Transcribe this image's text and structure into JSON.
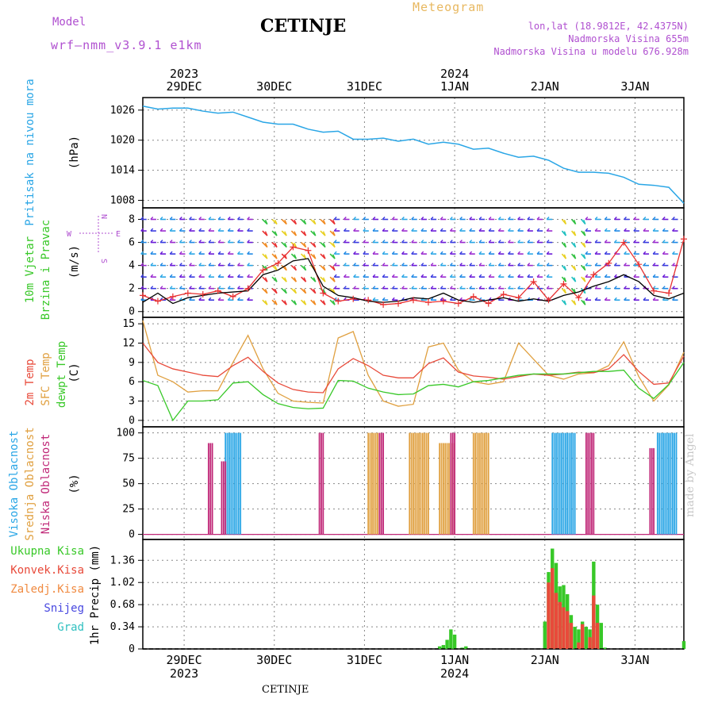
{
  "header": {
    "title": "CETINJE",
    "model_label": "Model",
    "model_value": "wrf—nmm_v3.9.1  e1km",
    "meteogram": "Meteogram",
    "lonlat": "lon,lat (18.9812E, 42.4375N)",
    "elevation": "Nadmorska Visina 655m",
    "model_elevation": "Nadmorska Visina u modelu 676.928m"
  },
  "footer": {
    "station": "CETINJE"
  },
  "watermark": "made by Angel",
  "colors": {
    "pressure": "#2aa6e6",
    "wind_speed": "#000000",
    "wind_gust": "#e83030",
    "temp_2m": "#e84a3a",
    "temp_sfc": "#e0a040",
    "dewpoint": "#38c828",
    "cloud_high": "#2aa6e6",
    "cloud_mid": "#e0a040",
    "cloud_low": "#c02878",
    "precip_total": "#38c828",
    "precip_conv": "#e84a3a",
    "title_purple": "#b050d0",
    "meteogram_orange": "#e8b860"
  },
  "chart_data": [
    {
      "type": "line",
      "title": "",
      "ylabel_colored": "Pritisak na nivou mora",
      "ylabel": "(hPa)",
      "yticks": [
        1008,
        1014,
        1020,
        1026
      ],
      "ylim": [
        1006.5,
        1028.5
      ],
      "grid": true,
      "x_hours": [
        0,
        4,
        8,
        12,
        16,
        20,
        24,
        28,
        32,
        36,
        40,
        44,
        48,
        52,
        56,
        60,
        64,
        68,
        72,
        76,
        80,
        84,
        88,
        92,
        96,
        100,
        104,
        108,
        112,
        116,
        120,
        124,
        128,
        132,
        136,
        140,
        144
      ],
      "series": [
        {
          "values": [
            1026.8,
            1026.2,
            1026.4,
            1026.4,
            1025.8,
            1025.4,
            1025.6,
            1024.6,
            1023.6,
            1023.2,
            1023.2,
            1022.2,
            1021.6,
            1021.8,
            1020.2,
            1020.2,
            1020.4,
            1019.8,
            1020.2,
            1019.2,
            1019.6,
            1019.2,
            1018.2,
            1018.4,
            1017.4,
            1016.6,
            1016.8,
            1016.0,
            1014.4,
            1013.6,
            1013.6,
            1013.4,
            1012.6,
            1011.2,
            1011.0,
            1010.6,
            1007.4
          ]
        }
      ]
    },
    {
      "type": "line",
      "ylabel_colored": [
        "10m Vjetar",
        "Brzina i Pravac"
      ],
      "ylabel": "(m/s)",
      "direction_legend": [
        "N",
        "E",
        "W",
        "S"
      ],
      "yticks": [
        0,
        2,
        4,
        6,
        8
      ],
      "ylim": [
        -0.5,
        9
      ],
      "grid": true,
      "x_hours": [
        0,
        4,
        8,
        12,
        16,
        20,
        24,
        28,
        32,
        36,
        40,
        44,
        48,
        52,
        56,
        60,
        64,
        68,
        72,
        76,
        80,
        84,
        88,
        92,
        96,
        100,
        104,
        108,
        112,
        116,
        120,
        124,
        128,
        132,
        136,
        140,
        144
      ],
      "series": [
        {
          "values": [
            0.8,
            1.6,
            0.7,
            1.2,
            1.4,
            1.6,
            1.7,
            1.8,
            3.2,
            3.6,
            4.4,
            4.6,
            2.2,
            1.4,
            1.2,
            0.9,
            0.8,
            0.9,
            1.2,
            1.1,
            1.6,
            1.0,
            0.8,
            1.0,
            1.2,
            0.9,
            1.1,
            0.9,
            1.4,
            1.7,
            2.2,
            2.6,
            3.2,
            2.6,
            1.4,
            1.1,
            1.6
          ]
        },
        {
          "values": [
            1.4,
            0.9,
            1.3,
            1.6,
            1.5,
            1.8,
            1.3,
            2.0,
            3.6,
            4.2,
            5.6,
            5.3,
            1.6,
            0.9,
            1.1,
            1.0,
            0.6,
            0.7,
            1.0,
            0.8,
            0.9,
            0.7,
            1.3,
            0.7,
            1.5,
            1.2,
            2.6,
            1.0,
            2.4,
            1.2,
            3.2,
            4.2,
            6.0,
            4.1,
            1.8,
            1.6,
            6.3
          ]
        }
      ]
    },
    {
      "type": "line",
      "ylabel_colored": [
        "2m Temp",
        "SFC Temp",
        "dewpt Temp"
      ],
      "ylabel": "(C)",
      "yticks": [
        0,
        3,
        6,
        9,
        12,
        15
      ],
      "ylim": [
        -1,
        16
      ],
      "grid": true,
      "x_hours": [
        0,
        4,
        8,
        12,
        16,
        20,
        24,
        28,
        32,
        36,
        40,
        44,
        48,
        52,
        56,
        60,
        64,
        68,
        72,
        76,
        80,
        84,
        88,
        92,
        96,
        100,
        104,
        108,
        112,
        116,
        120,
        124,
        128,
        132,
        136,
        140,
        144
      ],
      "series": [
        {
          "values": [
            12.0,
            9.0,
            8.0,
            7.5,
            7.0,
            6.8,
            8.5,
            9.8,
            7.6,
            5.8,
            4.8,
            4.4,
            4.3,
            8.0,
            9.6,
            8.5,
            7.0,
            6.6,
            6.6,
            8.8,
            9.7,
            7.5,
            6.9,
            6.7,
            6.4,
            6.8,
            7.2,
            7.0,
            7.2,
            7.5,
            7.4,
            8.0,
            10.2,
            7.6,
            5.6,
            5.8,
            10.0
          ]
        },
        {
          "values": [
            15.5,
            7.0,
            6.0,
            4.4,
            4.6,
            4.6,
            9.0,
            13.2,
            8.0,
            4.2,
            3.0,
            2.8,
            2.7,
            12.8,
            13.8,
            7.0,
            3.0,
            2.2,
            2.5,
            11.4,
            12.0,
            7.8,
            6.0,
            5.6,
            6.0,
            12.0,
            9.5,
            7.0,
            6.4,
            7.2,
            7.4,
            8.5,
            12.2,
            6.8,
            3.0,
            5.5,
            10.6
          ]
        },
        {
          "values": [
            6.2,
            5.4,
            0.0,
            3.0,
            3.0,
            3.2,
            5.8,
            6.0,
            4.0,
            2.6,
            2.0,
            1.8,
            1.9,
            6.2,
            6.1,
            5.0,
            4.4,
            4.0,
            4.1,
            5.4,
            5.6,
            5.2,
            6.0,
            6.2,
            6.6,
            7.0,
            7.2,
            7.2,
            7.2,
            7.4,
            7.6,
            7.6,
            7.8,
            5.0,
            3.4,
            5.6,
            9.0
          ]
        }
      ]
    },
    {
      "type": "bar",
      "ylabel_colored": [
        "Visoka Oblacnost",
        "Srednja Oblacnost",
        "Niska Oblacnost"
      ],
      "ylabel": "(%)",
      "yticks": [
        0,
        25,
        50,
        75,
        100
      ],
      "ylim": [
        -5,
        106
      ],
      "grid": true,
      "series": [
        {
          "name": "Visoka Oblacnost",
          "segments": [
            [
              22,
              26,
              100
            ],
            [
              109,
              115,
              100
            ],
            [
              137,
              142,
              100
            ]
          ]
        },
        {
          "name": "Srednja Oblacnost",
          "segments": [
            [
              60,
              63,
              100
            ],
            [
              71,
              76,
              100
            ],
            [
              79,
              83,
              90
            ],
            [
              88,
              92,
              100
            ]
          ]
        },
        {
          "name": "Niska Oblacnost",
          "segments": [
            [
              17.5,
              18.5,
              90
            ],
            [
              21,
              22,
              72
            ],
            [
              47,
              48,
              100
            ],
            [
              63,
              64,
              100
            ],
            [
              82,
              83,
              100
            ],
            [
              118,
              120,
              100
            ],
            [
              135,
              136,
              85
            ]
          ]
        }
      ]
    },
    {
      "type": "bar",
      "ylabel": "1hr Precip (mm)",
      "legend": [
        "Ukupna Kisa",
        "Konvek.Kisa",
        "Zaledj.Kisa",
        "Snijeg",
        "Grad"
      ],
      "yticks": [
        0,
        0.34,
        0.68,
        1.02,
        1.36
      ],
      "ylim": [
        0,
        1.68
      ],
      "grid": true,
      "series": [
        {
          "name": "Ukupna Kisa",
          "x_hours": [
            79,
            80,
            81,
            82,
            83,
            85,
            86,
            107,
            108,
            109,
            110,
            111,
            112,
            113,
            114,
            115,
            116,
            117,
            118,
            119,
            120,
            121,
            122,
            123,
            144
          ],
          "values": [
            0.04,
            0.06,
            0.14,
            0.3,
            0.22,
            0.02,
            0.04,
            0.42,
            1.18,
            1.54,
            1.32,
            0.96,
            0.98,
            0.84,
            0.52,
            0.34,
            0.3,
            0.42,
            0.34,
            0.3,
            1.34,
            0.68,
            0.4,
            0.02,
            0.12
          ]
        },
        {
          "name": "Konvek.Kisa",
          "x_hours": [
            108,
            109,
            110,
            111,
            112,
            113,
            114,
            116,
            117,
            119,
            120,
            121
          ],
          "values": [
            1.02,
            1.24,
            0.86,
            0.72,
            0.64,
            0.58,
            0.4,
            0.1,
            0.38,
            0.18,
            0.82,
            0.4
          ]
        }
      ]
    }
  ],
  "xaxis": {
    "top_years": [
      "2023",
      "2024"
    ],
    "bottom_years": [
      "2023",
      "2024"
    ],
    "dates": [
      "29DEC",
      "30DEC",
      "31DEC",
      "1JAN",
      "2JAN",
      "3JAN"
    ]
  }
}
